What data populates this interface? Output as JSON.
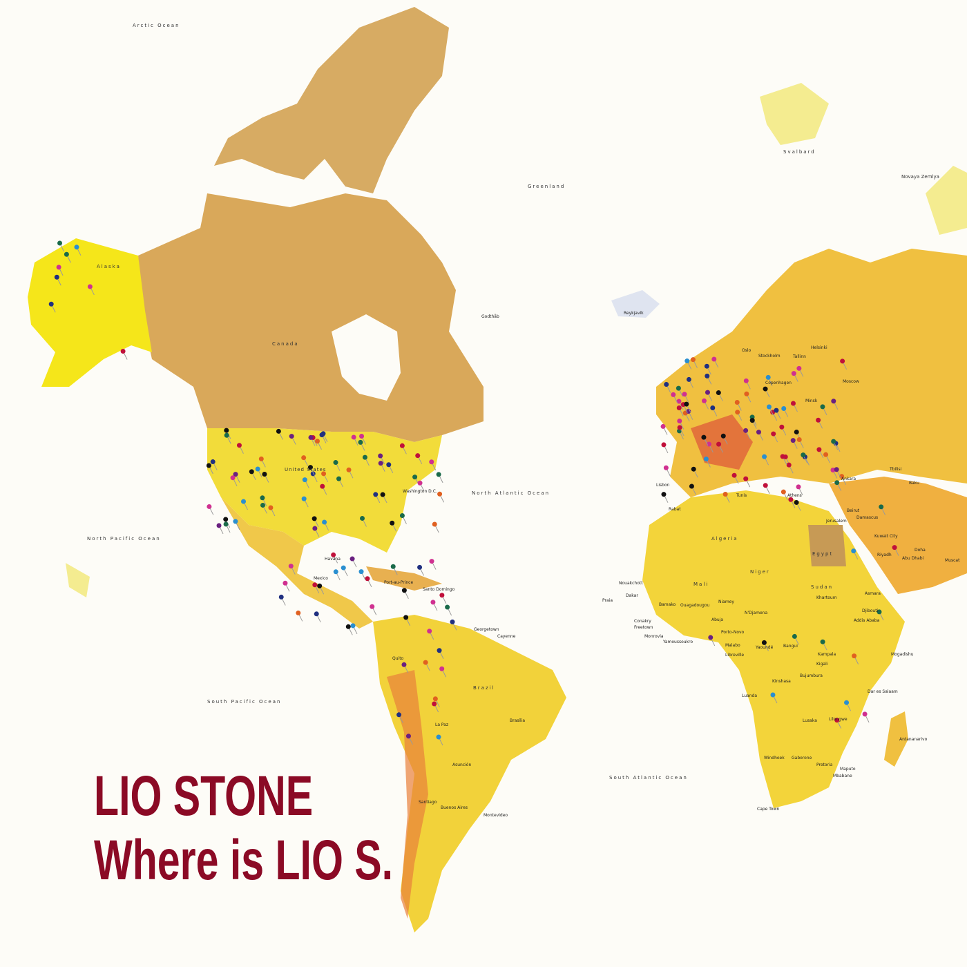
{
  "cover": {
    "artist": "LIO STONE",
    "album": "Where is LIO S.",
    "title_color": "#8b0a25"
  },
  "map": {
    "style": "watercolor world map with push pins",
    "colors": {
      "canada": "#d9a85a",
      "usa": "#f2dc3a",
      "alaska": "#f5e61a",
      "south_america": "#f2d23a",
      "africa": "#f3d43a",
      "europe": "#f0c040",
      "europe_red": "#e0603a",
      "greenland": "#ffffff",
      "ocean": "#fdfcf7"
    },
    "ocean_labels": [
      "Arctic Ocean",
      "North Pacific Ocean",
      "North Atlantic Ocean",
      "South Pacific Ocean",
      "South Atlantic Ocean"
    ],
    "region_labels": [
      "Greenland",
      "Svalbard",
      "Canada",
      "United States",
      "Alaska",
      "Brazil",
      "Egypt",
      "Algeria",
      "Sudan",
      "Niger",
      "Mali",
      "Novaya Zemlya"
    ],
    "city_labels": [
      "Reykjavík",
      "Godthåb",
      "Washington D.C.",
      "Mexico",
      "Havana",
      "Port-au-Prince",
      "Santo Domingo",
      "Georgetown",
      "Cayenne",
      "Quito",
      "La Paz",
      "Brasília",
      "Asunción",
      "Buenos Aires",
      "Montevideo",
      "Santiago",
      "Lisbon",
      "Rabat",
      "Tunis",
      "Athens",
      "Ankara",
      "Tbilisi",
      "Baku",
      "Beirut",
      "Damascus",
      "Jerusalem",
      "Kuwait City",
      "Riyadh",
      "Abu Dhabi",
      "Doha",
      "Muscat",
      "Helsinki",
      "Tallinn",
      "Stockholm",
      "Oslo",
      "Copenhagen",
      "Minsk",
      "Moscow",
      "Nouakchott",
      "Dakar",
      "Bamako",
      "Ouagadougou",
      "Niamey",
      "N'Djamena",
      "Khartoum",
      "Asmara",
      "Djibouti",
      "Addis Ababa",
      "Mogadishu",
      "Abuja",
      "Porto-Novo",
      "Yamoussoukro",
      "Monrovia",
      "Freetown",
      "Conakry",
      "Malabo",
      "Yaoundé",
      "Bangui",
      "Libreville",
      "Kampala",
      "Kigali",
      "Bujumbura",
      "Kinshasa",
      "Luanda",
      "Dar es Salaam",
      "Lusaka",
      "Lilongwe",
      "Windhoek",
      "Gaborone",
      "Pretoria",
      "Maputo",
      "Mbabane",
      "Cape Town",
      "Antananarivo",
      "Praia"
    ]
  }
}
